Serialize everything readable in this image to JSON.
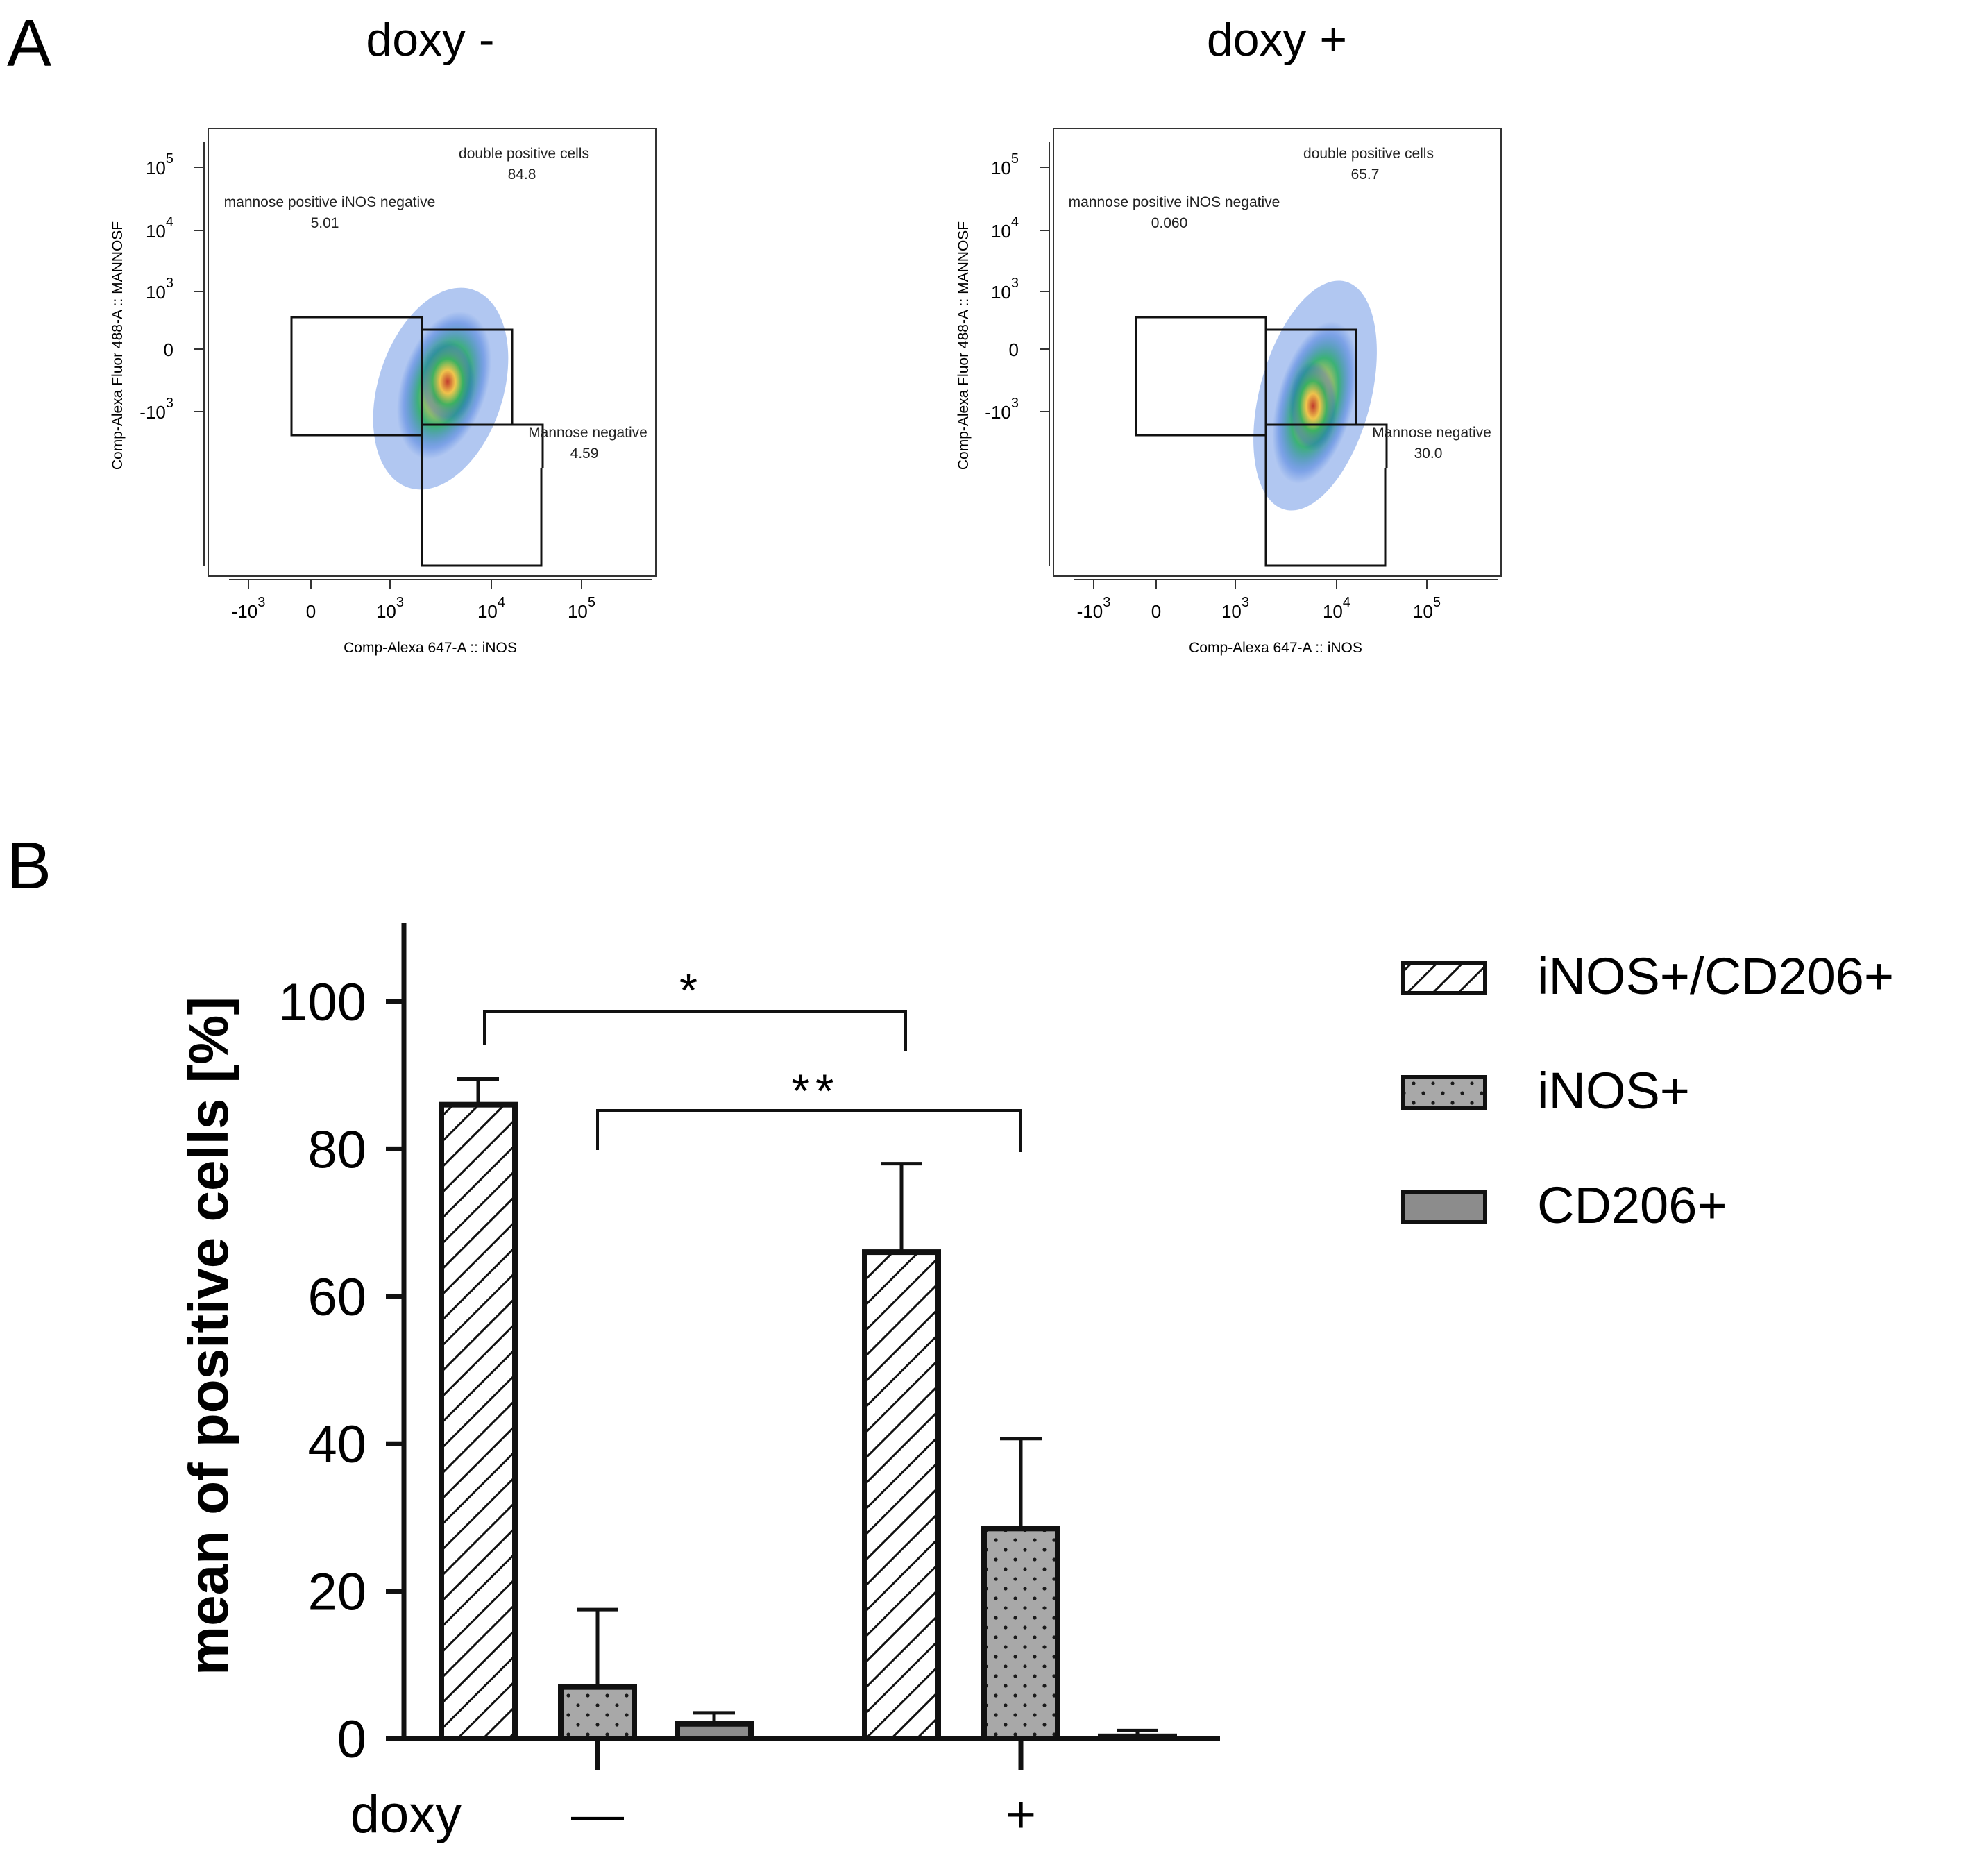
{
  "panel_a": {
    "label": "A",
    "x_axis_label": "Comp-Alexa 647-A :: iNOS",
    "y_axis_label": "Comp-Alexa Fluor 488-A :: MANNOSF",
    "x_ticks": [
      {
        "base": "-10",
        "exp": "3"
      },
      {
        "base": "0",
        "exp": ""
      },
      {
        "base": "10",
        "exp": "3"
      },
      {
        "base": "10",
        "exp": "4"
      },
      {
        "base": "10",
        "exp": "5"
      }
    ],
    "y_ticks": [
      {
        "base": "10",
        "exp": "5"
      },
      {
        "base": "10",
        "exp": "4"
      },
      {
        "base": "10",
        "exp": "3"
      },
      {
        "base": "0",
        "exp": ""
      },
      {
        "base": "-10",
        "exp": "3"
      }
    ],
    "plots": [
      {
        "title": "doxy -",
        "gates": [
          {
            "name": "double positive cells",
            "value": "84.8"
          },
          {
            "name": "mannose positive iNOS negative",
            "value": "5.01"
          },
          {
            "name": "Mannose negative",
            "value": "4.59"
          }
        ]
      },
      {
        "title": "doxy +",
        "gates": [
          {
            "name": "double positive cells",
            "value": "65.7"
          },
          {
            "name": "mannose positive iNOS negative",
            "value": "0.060"
          },
          {
            "name": "Mannose negative",
            "value": "30.0"
          }
        ]
      }
    ]
  },
  "panel_b": {
    "label": "B",
    "group_axis_label": "doxy",
    "significance": [
      "*",
      "**"
    ]
  },
  "chart_data": {
    "type": "bar",
    "title": "",
    "xlabel": "doxy",
    "ylabel": "mean of positive cells [%]",
    "ylim": [
      0,
      110
    ],
    "yticks": [
      0,
      20,
      40,
      60,
      80,
      100
    ],
    "categories": [
      "—",
      "+"
    ],
    "series": [
      {
        "name": "iNOS+/CD206+",
        "values": [
          86,
          66
        ],
        "errors": [
          3.5,
          12
        ],
        "fill": "hatch",
        "color": "#ffffff"
      },
      {
        "name": "iNOS+",
        "values": [
          7,
          28.5
        ],
        "errors": [
          10.5,
          12.2
        ],
        "fill": "dots",
        "color": "#a8a8a8"
      },
      {
        "name": "CD206+",
        "values": [
          2,
          0.3
        ],
        "errors": [
          1.5,
          0.8
        ],
        "fill": "solid",
        "color": "#8c8c8c"
      }
    ],
    "legend": [
      "iNOS+/CD206+",
      "iNOS+",
      "CD206+"
    ],
    "legend_position": "right"
  }
}
